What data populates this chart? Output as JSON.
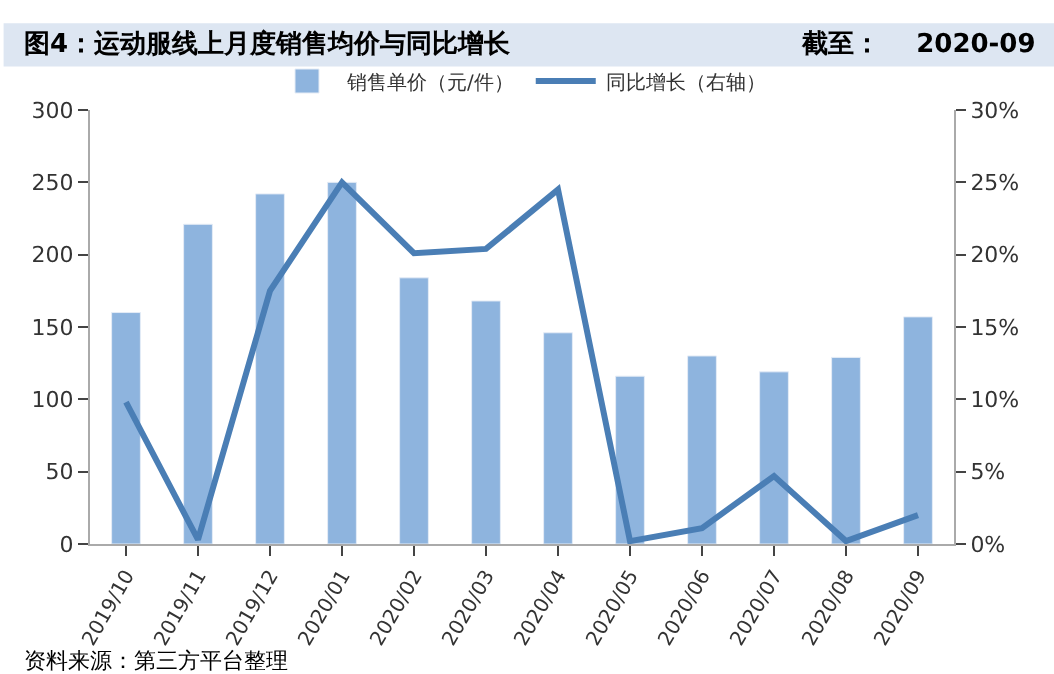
{
  "chart_data": {
    "type": "bar",
    "title": "图4：运动服线上月度销售均价与同比增长",
    "subtitle": "截至：    2020-09",
    "categories": [
      "2019/10",
      "2019/11",
      "2019/12",
      "2020/01",
      "2020/02",
      "2020/03",
      "2020/04",
      "2020/05",
      "2020/06",
      "2020/07",
      "2020/08",
      "2020/09"
    ],
    "series": [
      {
        "name": "销售单价（元/件）",
        "color": "#8eb4de",
        "values": [
          160,
          221,
          242,
          250,
          184,
          168,
          146,
          116,
          130,
          119,
          129,
          157
        ]
      },
      {
        "name": "同比增长（右轴）",
        "type": "line",
        "axis": "y2",
        "color": "#4a7eb5",
        "values": [
          9.8,
          0.3,
          17.5,
          25,
          20.1,
          20.4,
          24.5,
          0.2,
          1.1,
          4.7,
          0.2,
          2.0
        ]
      }
    ],
    "ylim": [
      0,
      300
    ],
    "yticks": [
      0,
      50,
      100,
      150,
      200,
      250,
      300
    ],
    "y2lim": [
      0,
      30
    ],
    "y2ticks": [
      {
        "value": 0,
        "label": "0%"
      },
      {
        "value": 5,
        "label": "5%"
      },
      {
        "value": 10,
        "label": "10%"
      },
      {
        "value": 15,
        "label": "15%"
      },
      {
        "value": 20,
        "label": "20%"
      },
      {
        "value": 25,
        "label": "25%"
      },
      {
        "value": 30,
        "label": "30%"
      }
    ],
    "legend": "top",
    "grid": false,
    "marker": "none",
    "line_style": "solid",
    "annotations": [
      "资料来源：第三方平台整理"
    ]
  }
}
